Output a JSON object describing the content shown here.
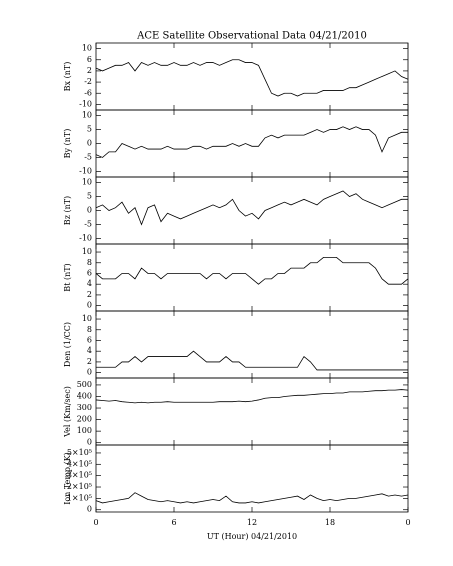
{
  "chart_data": [
    {
      "type": "line",
      "title": "ACE Satellite Observational Data  04/21/2010",
      "ylabel": "Bx (nT)",
      "color": "#000000",
      "ylim": [
        -12,
        12
      ],
      "yticks": [
        -10,
        -6,
        -2,
        2,
        6,
        10
      ],
      "x": [
        0,
        0.5,
        1,
        1.5,
        2,
        2.5,
        3,
        3.5,
        4,
        4.5,
        5,
        5.5,
        6,
        6.5,
        7,
        7.5,
        8,
        8.5,
        9,
        9.5,
        10,
        10.5,
        11,
        11.5,
        12,
        12.5,
        13,
        13.5,
        14,
        14.5,
        15,
        15.5,
        16,
        16.5,
        17,
        17.5,
        18,
        18.5,
        19,
        19.5,
        20,
        20.5,
        21,
        21.5,
        22,
        22.5,
        23,
        23.5,
        24
      ],
      "values": [
        3,
        2,
        3,
        4,
        4,
        5,
        2,
        5,
        4,
        5,
        4,
        4,
        5,
        4,
        4,
        5,
        4,
        5,
        5,
        4,
        5,
        6,
        6,
        5,
        5,
        4,
        -1,
        -6,
        -7,
        -6,
        -6,
        -7,
        -6,
        -6,
        -6,
        -5,
        -5,
        -5,
        -5,
        -4,
        -4,
        -3,
        -2,
        -1,
        0,
        1,
        2,
        0,
        -1
      ]
    },
    {
      "type": "line",
      "ylabel": "By (nT)",
      "color": "#000000",
      "ylim": [
        -12,
        12
      ],
      "yticks": [
        -10,
        -5,
        0,
        5,
        10
      ],
      "x": [
        0,
        0.5,
        1,
        1.5,
        2,
        2.5,
        3,
        3.5,
        4,
        4.5,
        5,
        5.5,
        6,
        6.5,
        7,
        7.5,
        8,
        8.5,
        9,
        9.5,
        10,
        10.5,
        11,
        11.5,
        12,
        12.5,
        13,
        13.5,
        14,
        14.5,
        15,
        15.5,
        16,
        16.5,
        17,
        17.5,
        18,
        18.5,
        19,
        19.5,
        20,
        20.5,
        21,
        21.5,
        22,
        22.5,
        23,
        23.5,
        24
      ],
      "values": [
        -4,
        -5,
        -3,
        -3,
        0,
        -1,
        -2,
        -1,
        -2,
        -2,
        -2,
        -1,
        -2,
        -2,
        -2,
        -1,
        -1,
        -2,
        -1,
        -1,
        -1,
        0,
        -1,
        0,
        -1,
        -1,
        2,
        3,
        2,
        3,
        3,
        3,
        3,
        4,
        5,
        4,
        5,
        5,
        6,
        5,
        6,
        5,
        5,
        3,
        -3,
        2,
        3,
        4,
        4
      ]
    },
    {
      "type": "line",
      "ylabel": "Bz (nT)",
      "color": "#000000",
      "ylim": [
        -12,
        12
      ],
      "yticks": [
        -10,
        -5,
        0,
        5,
        10
      ],
      "x": [
        0,
        0.5,
        1,
        1.5,
        2,
        2.5,
        3,
        3.5,
        4,
        4.5,
        5,
        5.5,
        6,
        6.5,
        7,
        7.5,
        8,
        8.5,
        9,
        9.5,
        10,
        10.5,
        11,
        11.5,
        12,
        12.5,
        13,
        13.5,
        14,
        14.5,
        15,
        15.5,
        16,
        16.5,
        17,
        17.5,
        18,
        18.5,
        19,
        19.5,
        20,
        20.5,
        21,
        21.5,
        22,
        22.5,
        23,
        23.5,
        24
      ],
      "values": [
        1,
        2,
        0,
        1,
        3,
        -1,
        1,
        -5,
        1,
        2,
        -4,
        -1,
        -2,
        -3,
        -2,
        -1,
        0,
        1,
        2,
        1,
        2,
        4,
        0,
        -2,
        -1,
        -3,
        0,
        1,
        2,
        3,
        2,
        3,
        4,
        3,
        2,
        4,
        5,
        6,
        7,
        5,
        6,
        4,
        3,
        2,
        1,
        2,
        3,
        4,
        4
      ]
    },
    {
      "type": "line",
      "ylabel": "Bt (nT)",
      "color": "#000000",
      "ylim": [
        -1,
        11.5
      ],
      "yticks": [
        0,
        2,
        4,
        6,
        8,
        10
      ],
      "x": [
        0,
        0.5,
        1,
        1.5,
        2,
        2.5,
        3,
        3.5,
        4,
        4.5,
        5,
        5.5,
        6,
        6.5,
        7,
        7.5,
        8,
        8.5,
        9,
        9.5,
        10,
        10.5,
        11,
        11.5,
        12,
        12.5,
        13,
        13.5,
        14,
        14.5,
        15,
        15.5,
        16,
        16.5,
        17,
        17.5,
        18,
        18.5,
        19,
        19.5,
        20,
        20.5,
        21,
        21.5,
        22,
        22.5,
        23,
        23.5,
        24
      ],
      "values": [
        6,
        5,
        5,
        5,
        6,
        6,
        5,
        7,
        6,
        6,
        5,
        6,
        6,
        6,
        6,
        6,
        6,
        5,
        6,
        6,
        5,
        6,
        6,
        6,
        5,
        4,
        5,
        5,
        6,
        6,
        7,
        7,
        7,
        8,
        8,
        9,
        9,
        9,
        8,
        8,
        8,
        8,
        8,
        7,
        5,
        4,
        4,
        4,
        5
      ]
    },
    {
      "type": "line",
      "ylabel": "Den (1/CC)",
      "color": "#000000",
      "ylim": [
        -1,
        11.5
      ],
      "yticks": [
        0,
        2,
        4,
        6,
        8,
        10
      ],
      "x": [
        0,
        0.5,
        1,
        1.5,
        2,
        2.5,
        3,
        3.5,
        4,
        4.5,
        5,
        5.5,
        6,
        6.5,
        7,
        7.5,
        8,
        8.5,
        9,
        9.5,
        10,
        10.5,
        11,
        11.5,
        12,
        12.5,
        13,
        13.5,
        14,
        14.5,
        15,
        15.5,
        16,
        16.5,
        17,
        17.5,
        18,
        18.5,
        19,
        19.5,
        20,
        20.5,
        21,
        21.5,
        22,
        22.5,
        23,
        23.5,
        24
      ],
      "values": [
        1,
        1,
        1,
        1,
        2,
        2,
        3,
        2,
        3,
        3,
        3,
        3,
        3,
        3,
        3,
        4,
        3,
        2,
        2,
        2,
        3,
        2,
        2,
        1,
        1,
        1,
        1,
        1,
        1,
        1,
        1,
        1,
        3,
        2,
        0.5,
        0.5,
        0.5,
        0.5,
        0.5,
        0.5,
        0.5,
        0.5,
        0.5,
        0.5,
        0.5,
        0.5,
        0.5,
        0.5,
        0.5
      ]
    },
    {
      "type": "line",
      "ylabel": "Vel (Km/sec)",
      "color": "#000000",
      "ylim": [
        -20,
        560
      ],
      "yticks": [
        0,
        100,
        200,
        300,
        400,
        500
      ],
      "x": [
        0,
        0.5,
        1,
        1.5,
        2,
        2.5,
        3,
        3.5,
        4,
        4.5,
        5,
        5.5,
        6,
        6.5,
        7,
        7.5,
        8,
        8.5,
        9,
        9.5,
        10,
        10.5,
        11,
        11.5,
        12,
        12.5,
        13,
        13.5,
        14,
        14.5,
        15,
        15.5,
        16,
        16.5,
        17,
        17.5,
        18,
        18.5,
        19,
        19.5,
        20,
        20.5,
        21,
        21.5,
        22,
        22.5,
        23,
        23.5,
        24
      ],
      "values": [
        370,
        365,
        360,
        365,
        355,
        350,
        345,
        350,
        345,
        350,
        350,
        355,
        350,
        350,
        350,
        350,
        350,
        350,
        350,
        355,
        355,
        355,
        360,
        355,
        360,
        370,
        385,
        390,
        390,
        400,
        405,
        410,
        410,
        415,
        420,
        425,
        425,
        430,
        430,
        440,
        440,
        440,
        445,
        450,
        450,
        455,
        455,
        460,
        455
      ]
    },
    {
      "type": "line",
      "ylabel": "Ion Temp (K)",
      "xlabel": "UT (Hour)  04/21/2010",
      "color": "#000000",
      "ylim": [
        -20000,
        570000
      ],
      "yticks": [
        0,
        {
          "value": 100000,
          "label": "1×10⁵"
        },
        {
          "value": 200000,
          "label": "2×10⁵"
        },
        {
          "value": 300000,
          "label": "3×10⁵"
        },
        {
          "value": 400000,
          "label": "4×10⁵"
        },
        {
          "value": 500000,
          "label": "5×10⁵"
        }
      ],
      "xlim": [
        0,
        24
      ],
      "xticks": [
        0,
        6,
        12,
        18,
        {
          "value": 24,
          "label": "0"
        }
      ],
      "x": [
        0,
        0.5,
        1,
        1.5,
        2,
        2.5,
        3,
        3.5,
        4,
        4.5,
        5,
        5.5,
        6,
        6.5,
        7,
        7.5,
        8,
        8.5,
        9,
        9.5,
        10,
        10.5,
        11,
        11.5,
        12,
        12.5,
        13,
        13.5,
        14,
        14.5,
        15,
        15.5,
        16,
        16.5,
        17,
        17.5,
        18,
        18.5,
        19,
        19.5,
        20,
        20.5,
        21,
        21.5,
        22,
        22.5,
        23,
        23.5,
        24
      ],
      "values": [
        80000,
        60000,
        70000,
        80000,
        90000,
        100000,
        150000,
        120000,
        90000,
        80000,
        70000,
        80000,
        70000,
        60000,
        70000,
        60000,
        70000,
        80000,
        90000,
        80000,
        120000,
        70000,
        60000,
        60000,
        70000,
        60000,
        70000,
        80000,
        90000,
        100000,
        110000,
        120000,
        90000,
        130000,
        100000,
        80000,
        90000,
        80000,
        90000,
        100000,
        100000,
        110000,
        120000,
        130000,
        140000,
        120000,
        130000,
        120000,
        130000
      ]
    }
  ]
}
